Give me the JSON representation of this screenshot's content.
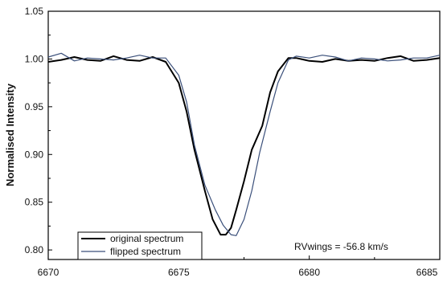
{
  "chart_data": {
    "type": "line",
    "title": "",
    "xlabel": "",
    "ylabel": "Normalised Intensity",
    "xlim": [
      6670,
      6685
    ],
    "ylim": [
      0.79,
      1.05
    ],
    "x_ticks": [
      6670,
      6675,
      6680,
      6685
    ],
    "y_ticks": [
      0.8,
      0.85,
      0.9,
      0.95,
      1.0,
      1.05
    ],
    "x_tick_labels": [
      "6670",
      "6675",
      "6680",
      "6685"
    ],
    "y_tick_labels": [
      "0.80",
      "0.85",
      "0.90",
      "0.95",
      "1.00",
      "1.05"
    ],
    "grid": false,
    "legend_position": "bottom-left",
    "annotation": "RVwings = -56.8 km/s",
    "series": [
      {
        "name": "original spectrum",
        "color": "#000000",
        "x": [
          6670.0,
          6670.5,
          6671.0,
          6671.5,
          6672.0,
          6672.5,
          6673.0,
          6673.5,
          6674.0,
          6674.5,
          6675.0,
          6675.3,
          6675.6,
          6676.0,
          6676.3,
          6676.6,
          6676.8,
          6677.0,
          6677.2,
          6677.5,
          6677.8,
          6678.2,
          6678.5,
          6678.8,
          6679.2,
          6679.5,
          6680.0,
          6680.5,
          6681.0,
          6681.5,
          6682.0,
          6682.5,
          6683.0,
          6683.5,
          6684.0,
          6684.5,
          6685.0
        ],
        "values": [
          0.997,
          0.999,
          1.002,
          0.999,
          0.998,
          1.003,
          0.999,
          0.998,
          1.002,
          0.997,
          0.975,
          0.945,
          0.905,
          0.862,
          0.832,
          0.816,
          0.816,
          0.823,
          0.842,
          0.872,
          0.905,
          0.93,
          0.965,
          0.987,
          1.001,
          1.001,
          0.998,
          0.997,
          1.0,
          0.998,
          0.999,
          0.998,
          1.001,
          1.003,
          0.998,
          0.999,
          1.001
        ]
      },
      {
        "name": "flipped spectrum",
        "color": "#3a4f7a",
        "x": [
          6670.0,
          6670.5,
          6671.0,
          6671.5,
          6672.0,
          6672.5,
          6673.0,
          6673.5,
          6674.0,
          6674.5,
          6675.0,
          6675.3,
          6675.6,
          6676.0,
          6676.4,
          6676.7,
          6677.0,
          6677.2,
          6677.5,
          6677.8,
          6678.1,
          6678.5,
          6678.8,
          6679.2,
          6679.5,
          6680.0,
          6680.5,
          6681.0,
          6681.5,
          6682.0,
          6682.5,
          6683.0,
          6683.5,
          6684.0,
          6684.5,
          6685.0
        ],
        "values": [
          1.002,
          1.006,
          0.998,
          1.001,
          1.0,
          0.999,
          1.001,
          1.004,
          1.001,
          1.001,
          0.983,
          0.955,
          0.91,
          0.868,
          0.842,
          0.826,
          0.816,
          0.815,
          0.832,
          0.862,
          0.902,
          0.945,
          0.975,
          0.999,
          1.003,
          1.001,
          1.004,
          1.002,
          0.998,
          1.001,
          1.0,
          0.998,
          0.999,
          1.001,
          1.001,
          1.004
        ]
      }
    ]
  }
}
